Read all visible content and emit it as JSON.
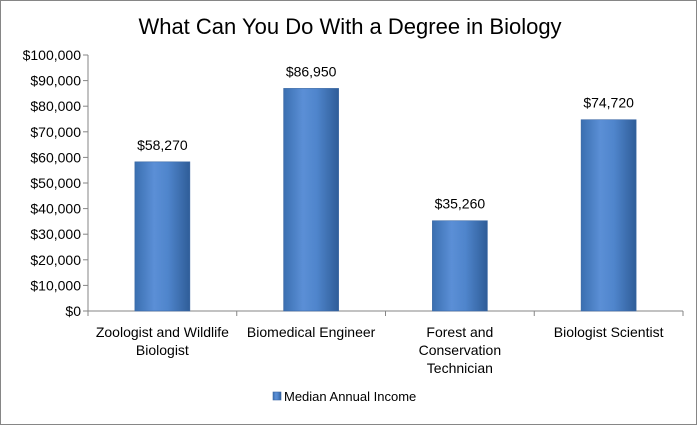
{
  "chart_data": {
    "type": "bar",
    "title": "What Can You Do With a Degree in Biology",
    "categories": [
      [
        "Zoologist and Wildlife",
        "Biologist"
      ],
      [
        "Biomedical Engineer"
      ],
      [
        "Forest and",
        "Conservation",
        "Technician"
      ],
      [
        "Biologist Scientist"
      ]
    ],
    "series": [
      {
        "name": "Median Annual Income",
        "values": [
          58270,
          86950,
          35260,
          74720
        ],
        "data_labels": [
          "$58,270",
          "$86,950",
          "$35,260",
          "$74,720"
        ],
        "color": "#4a7ebb"
      }
    ],
    "ylim": [
      0,
      100000
    ],
    "yticks": [
      "$0",
      "$10,000",
      "$20,000",
      "$30,000",
      "$40,000",
      "$50,000",
      "$60,000",
      "$70,000",
      "$80,000",
      "$90,000",
      "$100,000"
    ],
    "xlabel": "",
    "ylabel": "",
    "grid": false,
    "legend_position": "bottom"
  }
}
